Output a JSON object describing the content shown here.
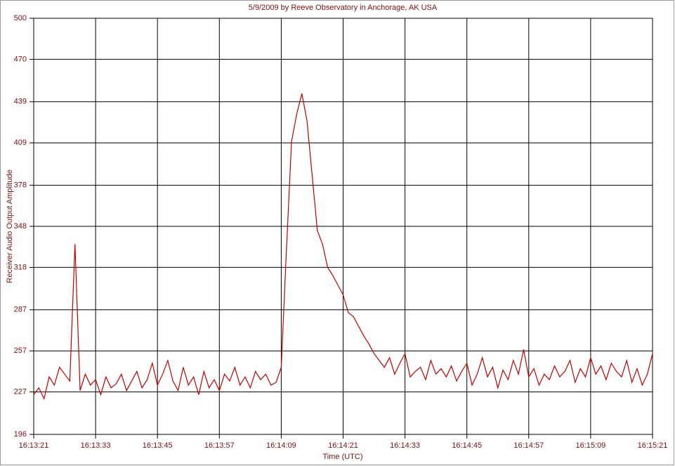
{
  "chart_data": {
    "type": "line",
    "title": "5/9/2009  by  Reeve Observatory  in  Anchorage, AK  USA",
    "x_label": "Time (UTC)",
    "y_label": "Receiver Audio Output Amplitude",
    "color": "#c00000",
    "grid": true,
    "xlim": [
      58401,
      58521
    ],
    "xticks": [
      {
        "value": 58401,
        "label": "16:13:21"
      },
      {
        "value": 58413,
        "label": "16:13:33"
      },
      {
        "value": 58425,
        "label": "16:13:45"
      },
      {
        "value": 58437,
        "label": "16:13:57"
      },
      {
        "value": 58449,
        "label": "16:14:09"
      },
      {
        "value": 58461,
        "label": "16:14:21"
      },
      {
        "value": 58473,
        "label": "16:14:33"
      },
      {
        "value": 58485,
        "label": "16:14:45"
      },
      {
        "value": 58497,
        "label": "16:14:57"
      },
      {
        "value": 58509,
        "label": "16:15:09"
      },
      {
        "value": 58521,
        "label": "16:15:21"
      }
    ],
    "ylim": [
      196,
      500
    ],
    "yticks": [
      196,
      227,
      257,
      287,
      318,
      348,
      378,
      409,
      439,
      470,
      500
    ],
    "x": [
      58401,
      58402,
      58403,
      58404,
      58405,
      58406,
      58407,
      58408,
      58409,
      58410,
      58411,
      58412,
      58413,
      58414,
      58415,
      58416,
      58417,
      58418,
      58419,
      58420,
      58421,
      58422,
      58423,
      58424,
      58425,
      58426,
      58427,
      58428,
      58429,
      58430,
      58431,
      58432,
      58433,
      58434,
      58435,
      58436,
      58437,
      58438,
      58439,
      58440,
      58441,
      58442,
      58443,
      58444,
      58445,
      58446,
      58447,
      58448,
      58449,
      58450,
      58451,
      58452,
      58453,
      58454,
      58455,
      58456,
      58457,
      58458,
      58459,
      58460,
      58461,
      58462,
      58463,
      58464,
      58465,
      58466,
      58467,
      58468,
      58469,
      58470,
      58471,
      58472,
      58473,
      58474,
      58475,
      58476,
      58477,
      58478,
      58479,
      58480,
      58481,
      58482,
      58483,
      58484,
      58485,
      58486,
      58487,
      58488,
      58489,
      58490,
      58491,
      58492,
      58493,
      58494,
      58495,
      58496,
      58497,
      58498,
      58499,
      58500,
      58501,
      58502,
      58503,
      58504,
      58505,
      58506,
      58507,
      58508,
      58509,
      58510,
      58511,
      58512,
      58513,
      58514,
      58515,
      58516,
      58517,
      58518,
      58519,
      58520,
      58521
    ],
    "values": [
      225,
      230,
      222,
      238,
      232,
      245,
      240,
      235,
      335,
      228,
      240,
      232,
      236,
      225,
      238,
      230,
      233,
      240,
      228,
      235,
      242,
      230,
      236,
      248,
      232,
      240,
      250,
      235,
      228,
      245,
      232,
      238,
      225,
      242,
      230,
      236,
      228,
      240,
      235,
      245,
      232,
      238,
      230,
      242,
      236,
      240,
      232,
      234,
      245,
      330,
      410,
      430,
      445,
      425,
      385,
      345,
      335,
      318,
      312,
      305,
      298,
      285,
      282,
      275,
      268,
      262,
      255,
      250,
      245,
      252,
      240,
      248,
      255,
      238,
      242,
      245,
      236,
      250,
      240,
      244,
      238,
      246,
      235,
      242,
      248,
      232,
      240,
      252,
      238,
      245,
      230,
      243,
      236,
      250,
      240,
      258,
      238,
      244,
      232,
      240,
      236,
      246,
      238,
      242,
      250,
      234,
      244,
      238,
      252,
      240,
      246,
      236,
      248,
      242,
      238,
      250,
      234,
      244,
      232,
      240,
      255
    ]
  }
}
